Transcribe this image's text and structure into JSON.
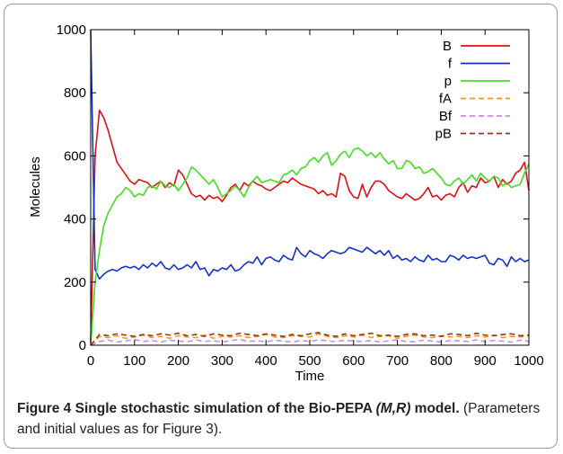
{
  "chart_data": {
    "type": "line",
    "xlabel": "Time",
    "ylabel": "Molecules",
    "xlim": [
      0,
      1000
    ],
    "ylim": [
      0,
      1000
    ],
    "xticks": [
      0,
      100,
      200,
      300,
      400,
      500,
      600,
      700,
      800,
      900,
      1000
    ],
    "yticks": [
      0,
      200,
      400,
      600,
      800,
      1000
    ],
    "grid": false,
    "legend_position": "top-right",
    "series": [
      {
        "name": "B",
        "color": "#dd1111",
        "dash": "solid",
        "x": [
          0,
          10,
          20,
          30,
          40,
          50,
          60,
          70,
          80,
          90,
          100,
          110,
          120,
          130,
          140,
          150,
          160,
          170,
          180,
          190,
          200,
          210,
          220,
          230,
          240,
          250,
          260,
          270,
          280,
          290,
          300,
          310,
          320,
          330,
          340,
          350,
          360,
          370,
          380,
          390,
          400,
          410,
          420,
          430,
          440,
          450,
          460,
          470,
          480,
          490,
          500,
          510,
          520,
          530,
          540,
          550,
          560,
          570,
          580,
          590,
          600,
          610,
          620,
          630,
          640,
          650,
          660,
          670,
          680,
          690,
          700,
          710,
          720,
          730,
          740,
          750,
          760,
          770,
          780,
          790,
          800,
          810,
          820,
          830,
          840,
          850,
          860,
          870,
          880,
          890,
          900,
          910,
          920,
          930,
          940,
          950,
          960,
          970,
          980,
          990,
          1000
        ],
        "y": [
          10,
          600,
          745,
          720,
          680,
          630,
          580,
          560,
          540,
          520,
          510,
          525,
          520,
          515,
          500,
          510,
          520,
          500,
          515,
          505,
          555,
          540,
          510,
          480,
          470,
          475,
          460,
          475,
          465,
          470,
          455,
          475,
          500,
          510,
          490,
          515,
          505,
          520,
          510,
          505,
          495,
          490,
          500,
          510,
          520,
          515,
          530,
          520,
          510,
          505,
          500,
          495,
          480,
          490,
          475,
          480,
          470,
          545,
          535,
          490,
          470,
          465,
          510,
          470,
          500,
          520,
          520,
          510,
          490,
          480,
          470,
          465,
          480,
          470,
          460,
          465,
          480,
          500,
          470,
          475,
          460,
          475,
          480,
          470,
          500,
          515,
          485,
          505,
          500,
          530,
          515,
          520,
          535,
          500,
          525,
          510,
          520,
          545,
          555,
          580,
          490
        ]
      },
      {
        "name": "f",
        "color": "#1133cc",
        "dash": "solid",
        "x": [
          0,
          10,
          20,
          30,
          40,
          50,
          60,
          70,
          80,
          90,
          100,
          110,
          120,
          130,
          140,
          150,
          160,
          170,
          180,
          190,
          200,
          210,
          220,
          230,
          240,
          250,
          260,
          270,
          280,
          290,
          300,
          310,
          320,
          330,
          340,
          350,
          360,
          370,
          380,
          390,
          400,
          410,
          420,
          430,
          440,
          450,
          460,
          470,
          480,
          490,
          500,
          510,
          520,
          530,
          540,
          550,
          560,
          570,
          580,
          590,
          600,
          610,
          620,
          630,
          640,
          650,
          660,
          670,
          680,
          690,
          700,
          710,
          720,
          730,
          740,
          750,
          760,
          770,
          780,
          790,
          800,
          810,
          820,
          830,
          840,
          850,
          860,
          870,
          880,
          890,
          900,
          910,
          920,
          930,
          940,
          950,
          960,
          970,
          980,
          990,
          1000
        ],
        "y": [
          1000,
          240,
          210,
          225,
          235,
          240,
          235,
          245,
          250,
          245,
          250,
          240,
          255,
          245,
          260,
          250,
          265,
          245,
          240,
          255,
          240,
          245,
          255,
          245,
          265,
          240,
          245,
          220,
          240,
          235,
          245,
          240,
          255,
          235,
          240,
          255,
          265,
          260,
          280,
          255,
          275,
          280,
          270,
          265,
          285,
          275,
          270,
          310,
          290,
          280,
          300,
          290,
          285,
          275,
          290,
          300,
          295,
          290,
          295,
          310,
          305,
          300,
          295,
          310,
          300,
          290,
          300,
          285,
          300,
          275,
          285,
          270,
          275,
          265,
          280,
          270,
          265,
          285,
          270,
          275,
          265,
          265,
          285,
          280,
          270,
          285,
          275,
          280,
          275,
          280,
          285,
          260,
          255,
          275,
          270,
          250,
          280,
          265,
          275,
          265,
          270
        ]
      },
      {
        "name": "p",
        "color": "#44dd22",
        "dash": "solid",
        "x": [
          0,
          10,
          20,
          30,
          40,
          50,
          60,
          70,
          80,
          90,
          100,
          110,
          120,
          130,
          140,
          150,
          160,
          170,
          180,
          190,
          200,
          210,
          220,
          230,
          240,
          250,
          260,
          270,
          280,
          290,
          300,
          310,
          320,
          330,
          340,
          350,
          360,
          370,
          380,
          390,
          400,
          410,
          420,
          430,
          440,
          450,
          460,
          470,
          480,
          490,
          500,
          510,
          520,
          530,
          540,
          550,
          560,
          570,
          580,
          590,
          600,
          610,
          620,
          630,
          640,
          650,
          660,
          670,
          680,
          690,
          700,
          710,
          720,
          730,
          740,
          750,
          760,
          770,
          780,
          790,
          800,
          810,
          820,
          830,
          840,
          850,
          860,
          870,
          880,
          890,
          900,
          910,
          920,
          930,
          940,
          950,
          960,
          970,
          980,
          990,
          1000
        ],
        "y": [
          0,
          200,
          300,
          380,
          420,
          445,
          470,
          480,
          500,
          490,
          470,
          480,
          475,
          500,
          505,
          495,
          520,
          505,
          500,
          510,
          490,
          510,
          530,
          565,
          555,
          540,
          525,
          510,
          525,
          500,
          470,
          480,
          490,
          505,
          490,
          470,
          500,
          520,
          535,
          515,
          520,
          525,
          520,
          515,
          540,
          545,
          555,
          540,
          560,
          565,
          585,
          595,
          580,
          600,
          610,
          570,
          585,
          605,
          615,
          595,
          620,
          625,
          615,
          600,
          610,
          595,
          610,
          590,
          575,
          585,
          560,
          560,
          585,
          580,
          560,
          565,
          545,
          550,
          560,
          545,
          530,
          510,
          505,
          520,
          530,
          510,
          525,
          540,
          520,
          545,
          530,
          520,
          535,
          530,
          505,
          515,
          500,
          505,
          510,
          545,
          575
        ]
      },
      {
        "name": "fA",
        "color": "#ff9900",
        "dash": "dashed",
        "x": [
          0,
          20,
          40,
          60,
          80,
          100,
          120,
          140,
          160,
          180,
          200,
          220,
          240,
          260,
          280,
          300,
          320,
          340,
          360,
          380,
          400,
          420,
          440,
          460,
          480,
          500,
          520,
          540,
          560,
          580,
          600,
          620,
          640,
          660,
          680,
          700,
          720,
          740,
          760,
          780,
          800,
          820,
          840,
          860,
          880,
          900,
          920,
          940,
          960,
          980,
          1000
        ],
        "y": [
          0,
          28,
          24,
          30,
          22,
          26,
          32,
          24,
          28,
          22,
          30,
          26,
          24,
          32,
          22,
          28,
          26,
          30,
          24,
          28,
          34,
          26,
          24,
          30,
          28,
          26,
          36,
          28,
          24,
          30,
          26,
          32,
          24,
          28,
          30,
          22,
          28,
          32,
          26,
          24,
          30,
          26,
          28,
          24,
          30,
          26,
          32,
          24,
          28,
          26,
          30
        ]
      },
      {
        "name": "Bf",
        "color": "#cc88ee",
        "dash": "dashed",
        "x": [
          0,
          20,
          40,
          60,
          80,
          100,
          120,
          140,
          160,
          180,
          200,
          220,
          240,
          260,
          280,
          300,
          320,
          340,
          360,
          380,
          400,
          420,
          440,
          460,
          480,
          500,
          520,
          540,
          560,
          580,
          600,
          620,
          640,
          660,
          680,
          700,
          720,
          740,
          760,
          780,
          800,
          820,
          840,
          860,
          880,
          900,
          920,
          940,
          960,
          980,
          1000
        ],
        "y": [
          0,
          12,
          16,
          10,
          14,
          18,
          12,
          15,
          10,
          16,
          13,
          11,
          17,
          12,
          14,
          10,
          15,
          18,
          12,
          14,
          11,
          16,
          13,
          10,
          15,
          12,
          17,
          14,
          11,
          16,
          13,
          12,
          15,
          10,
          14,
          17,
          12,
          11,
          16,
          13,
          10,
          15,
          14,
          12,
          17,
          11,
          15,
          13,
          10,
          16,
          12
        ]
      },
      {
        "name": "pB",
        "color": "#993322",
        "dash": "dashed",
        "x": [
          0,
          20,
          40,
          60,
          80,
          100,
          120,
          140,
          160,
          180,
          200,
          220,
          240,
          260,
          280,
          300,
          320,
          340,
          360,
          380,
          400,
          420,
          440,
          460,
          480,
          500,
          520,
          540,
          560,
          580,
          600,
          620,
          640,
          660,
          680,
          700,
          720,
          740,
          760,
          780,
          800,
          820,
          840,
          860,
          880,
          900,
          920,
          940,
          960,
          980,
          1000
        ],
        "y": [
          0,
          34,
          30,
          36,
          32,
          28,
          34,
          30,
          36,
          32,
          38,
          30,
          34,
          28,
          36,
          32,
          30,
          38,
          34,
          30,
          36,
          32,
          28,
          34,
          30,
          36,
          40,
          32,
          28,
          36,
          30,
          34,
          38,
          30,
          32,
          28,
          34,
          36,
          30,
          32,
          28,
          36,
          34,
          30,
          38,
          32,
          30,
          34,
          36,
          30,
          32
        ]
      }
    ]
  },
  "caption": {
    "label": "Figure 4",
    "title_prefix": "Single stochastic simulation of the Bio-PEPA ",
    "title_italic": "(M,R)",
    "title_suffix": " model.",
    "note": " (Parameters and initial values as for Figure 3)."
  }
}
